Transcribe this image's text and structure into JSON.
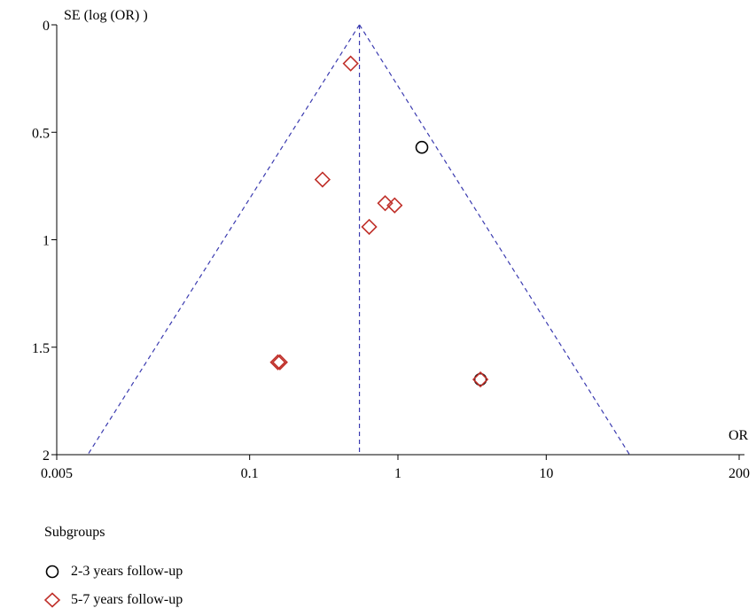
{
  "chart_data": {
    "type": "scatter",
    "title": "",
    "xlabel": "OR",
    "ylabel": "SE (log (OR) )",
    "x_scale": "log",
    "y_inverted": true,
    "xlim": [
      0.005,
      200
    ],
    "ylim": [
      0,
      2
    ],
    "x_ticks": [
      "0.005",
      "0.1",
      "1",
      "10",
      "200"
    ],
    "x_tick_values": [
      0.005,
      0.1,
      1,
      10,
      200
    ],
    "y_ticks": [
      "0",
      "0.5",
      "1",
      "1.5",
      "2"
    ],
    "y_tick_values": [
      0,
      0.5,
      1,
      1.5,
      2
    ],
    "grid": false,
    "funnel": {
      "center_or": 0.55,
      "apex_se": 0,
      "base_se": 2,
      "left_base_or": 0.0081,
      "right_base_or": 36.5,
      "color": "#3b3bb0"
    },
    "series": [
      {
        "name": "2-3 years follow-up",
        "marker": "circle",
        "color": "#000000",
        "points": [
          {
            "x": 1.45,
            "y": 0.57
          },
          {
            "x": 3.6,
            "y": 1.65
          }
        ]
      },
      {
        "name": "5-7 years follow-up",
        "marker": "diamond",
        "color": "#c0302a",
        "points": [
          {
            "x": 0.48,
            "y": 0.18
          },
          {
            "x": 0.31,
            "y": 0.72
          },
          {
            "x": 0.82,
            "y": 0.83
          },
          {
            "x": 0.95,
            "y": 0.84
          },
          {
            "x": 0.64,
            "y": 0.94
          },
          {
            "x": 0.155,
            "y": 1.57
          },
          {
            "x": 0.16,
            "y": 1.57
          },
          {
            "x": 3.6,
            "y": 1.65
          }
        ]
      }
    ]
  },
  "legend": {
    "title": "Subgroups",
    "items": [
      {
        "label": "2-3 years follow-up",
        "marker": "circle",
        "color": "#000000"
      },
      {
        "label": "5-7 years follow-up",
        "marker": "diamond",
        "color": "#c0302a"
      }
    ]
  }
}
